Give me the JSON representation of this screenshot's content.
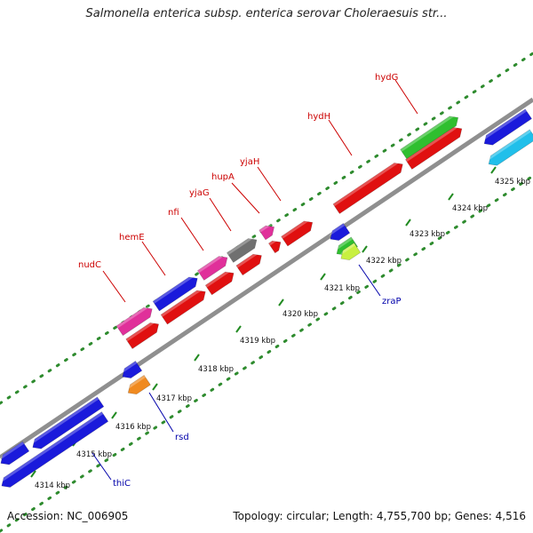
{
  "title": "Salmonella enterica subsp. enterica serovar Choleraesuis str...",
  "footer": {
    "accession": "Accession: NC_006905",
    "summary": "Topology: circular; Length: 4,755,700 bp; Genes: 4,516"
  },
  "colors": {
    "backbone": "#8f8f8f",
    "upper_label": "#cc0000",
    "lower_label": "#0000aa",
    "tick": "#228b22",
    "kbp_label": "#111111"
  },
  "kbp_ticks": [
    {
      "label": "4314 kbp"
    },
    {
      "label": "4315 kbp"
    },
    {
      "label": "4316 kbp"
    },
    {
      "label": "4317 kbp"
    },
    {
      "label": "4318 kbp"
    },
    {
      "label": "4319 kbp"
    },
    {
      "label": "4320 kbp"
    },
    {
      "label": "4321 kbp"
    },
    {
      "label": "4322 kbp"
    },
    {
      "label": "4323 kbp"
    },
    {
      "label": "4324 kbp"
    },
    {
      "label": "4325 kbp"
    }
  ],
  "gene_labels_upper": [
    {
      "name": "nudC"
    },
    {
      "name": "hemE"
    },
    {
      "name": "nfi"
    },
    {
      "name": "yjaG"
    },
    {
      "name": "hupA"
    },
    {
      "name": "yjaH"
    },
    {
      "name": "hydH"
    },
    {
      "name": "hydG"
    }
  ],
  "gene_labels_lower": [
    {
      "name": "thiC"
    },
    {
      "name": "rsd"
    },
    {
      "name": "zraP"
    }
  ]
}
